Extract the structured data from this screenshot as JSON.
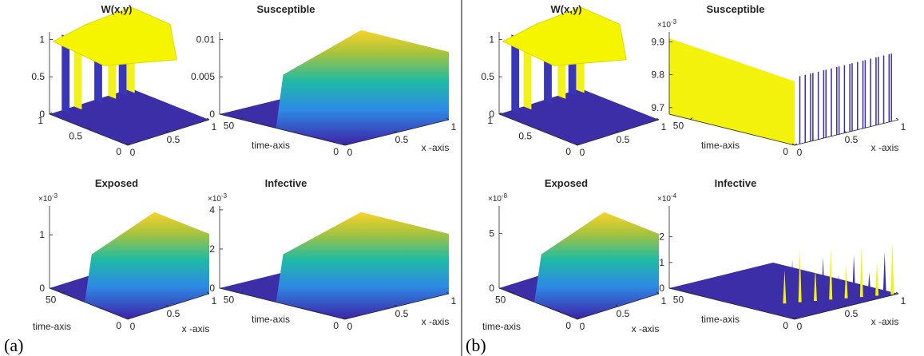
{
  "figures": [
    {
      "label": "(a)",
      "panels": [
        {
          "title": "W(x,y)",
          "zlim": [
            0,
            1.1
          ],
          "zticks": [
            0,
            0.5,
            1
          ],
          "ylim": [
            0,
            1
          ],
          "yticks": [
            0,
            0.5,
            1
          ],
          "xlim": [
            0,
            1
          ],
          "xticks": [
            0,
            0.5,
            1
          ]
        },
        {
          "title": "Susceptible",
          "zlim": [
            0,
            0.011
          ],
          "zticks": [
            0,
            0.005,
            0.01
          ],
          "ylim": [
            0,
            60
          ],
          "yticks": [
            0,
            50
          ],
          "xlim": [
            0,
            1
          ],
          "xticks": [
            0,
            0.5,
            1
          ],
          "ylabel": "time-axis",
          "xlabel": "x -axis"
        },
        {
          "title": "Exposed",
          "exponent_base": "×10",
          "exponent": "-3",
          "zlim": [
            0,
            1.54
          ],
          "zticks": [
            0,
            1
          ],
          "ylim": [
            0,
            60
          ],
          "yticks": [
            0,
            50
          ],
          "xlim": [
            0,
            1
          ],
          "xticks": [
            0,
            0.5,
            1
          ],
          "ylabel": "time-axis",
          "xlabel": "x -axis"
        },
        {
          "title": "Infective",
          "exponent_base": "×10",
          "exponent": "-3",
          "zlim": [
            0,
            4.2
          ],
          "zticks": [
            0,
            2,
            4
          ],
          "ylim": [
            0,
            60
          ],
          "yticks": [
            0,
            50
          ],
          "xlim": [
            0,
            1
          ],
          "xticks": [
            0,
            0.5,
            1
          ],
          "ylabel": "time-axis",
          "xlabel": "x -axis"
        }
      ]
    },
    {
      "label": "(b)",
      "panels": [
        {
          "title": "W(x,y)",
          "zlim": [
            0,
            1.1
          ],
          "zticks": [
            0,
            0.5,
            1
          ],
          "ylim": [
            0,
            1
          ],
          "yticks": [
            0,
            0.5,
            1
          ],
          "xlim": [
            0,
            1
          ],
          "xticks": [
            0,
            0.5,
            1
          ]
        },
        {
          "title": "Susceptible",
          "exponent_base": "×10",
          "exponent": "-3",
          "zlim": [
            9.68,
            9.93
          ],
          "zticks": [
            9.7,
            9.8,
            9.9
          ],
          "ylim": [
            0,
            60
          ],
          "yticks": [
            0,
            50
          ],
          "xlim": [
            0,
            1
          ],
          "xticks": [
            0,
            0.5,
            1
          ],
          "ylabel": "time-axis",
          "xlabel": "x -axis"
        },
        {
          "title": "Exposed",
          "exponent_base": "×10",
          "exponent": "-8",
          "zlim": [
            0,
            7.5
          ],
          "zticks": [
            0,
            5
          ],
          "ylim": [
            0,
            60
          ],
          "yticks": [
            0,
            50
          ],
          "xlim": [
            0,
            1
          ],
          "xticks": [
            0,
            0.5,
            1
          ],
          "ylabel": "time-axis",
          "xlabel": "x -axis"
        },
        {
          "title": "Infective",
          "exponent_base": "×10",
          "exponent": "-4",
          "zlim": [
            0,
            3.2
          ],
          "zticks": [
            0,
            1,
            2
          ],
          "ylim": [
            0,
            60
          ],
          "yticks": [
            0,
            50
          ],
          "xlim": [
            0,
            1
          ],
          "xticks": [
            0,
            0.5,
            1
          ],
          "ylabel": "time-axis",
          "xlabel": "x -axis"
        }
      ]
    }
  ]
}
